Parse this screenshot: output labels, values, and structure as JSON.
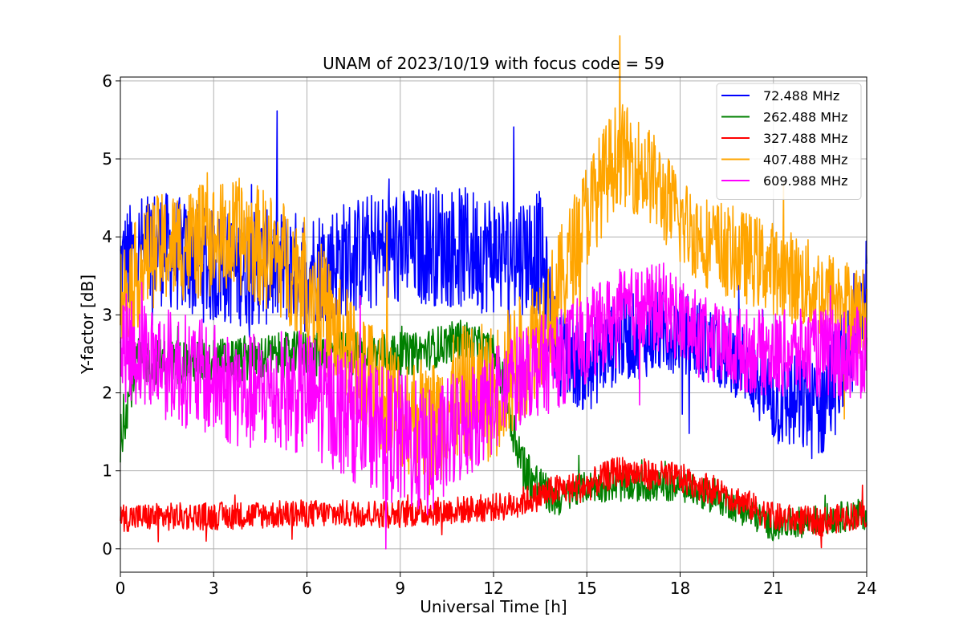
{
  "chart_data": {
    "type": "line",
    "title": "UNAM of 2023/10/19 with focus code = 59",
    "xlabel": "Universal Time [h]",
    "ylabel": "Y-factor [dB]",
    "xlim": [
      0,
      24
    ],
    "ylim": [
      -0.3,
      6.05
    ],
    "xticks": [
      0,
      3,
      6,
      9,
      12,
      15,
      18,
      21,
      24
    ],
    "yticks": [
      0,
      1,
      2,
      3,
      4,
      5,
      6
    ],
    "grid": true,
    "legend_position": "top-right",
    "series": [
      {
        "name": "72.488 MHz",
        "color": "#0000ff",
        "profile": [
          [
            0,
            3.6
          ],
          [
            1,
            3.9
          ],
          [
            3,
            3.6
          ],
          [
            6,
            3.6
          ],
          [
            8,
            3.8
          ],
          [
            10,
            3.9
          ],
          [
            12,
            3.8
          ],
          [
            13.5,
            3.8
          ],
          [
            14,
            2.6
          ],
          [
            15,
            2.3
          ],
          [
            16,
            2.7
          ],
          [
            18,
            2.8
          ],
          [
            19,
            2.6
          ],
          [
            20,
            2.4
          ],
          [
            21,
            1.9
          ],
          [
            22.5,
            1.8
          ],
          [
            23.5,
            2.6
          ],
          [
            24,
            3.5
          ]
        ],
        "amplitude": [
          [
            0,
            0.75
          ],
          [
            6,
            0.75
          ],
          [
            12,
            0.8
          ],
          [
            13.5,
            0.8
          ],
          [
            14,
            0.6
          ],
          [
            20,
            0.5
          ],
          [
            21,
            0.6
          ],
          [
            24,
            0.8
          ]
        ]
      },
      {
        "name": "262.488 MHz",
        "color": "#008000",
        "profile": [
          [
            0,
            1.4
          ],
          [
            0.5,
            2.4
          ],
          [
            3,
            2.4
          ],
          [
            6,
            2.5
          ],
          [
            8,
            2.5
          ],
          [
            9.5,
            2.5
          ],
          [
            11,
            2.7
          ],
          [
            12,
            2.5
          ],
          [
            13,
            1.0
          ],
          [
            14,
            0.6
          ],
          [
            15,
            0.8
          ],
          [
            16,
            0.8
          ],
          [
            18,
            0.8
          ],
          [
            19.5,
            0.6
          ],
          [
            21,
            0.3
          ],
          [
            24,
            0.45
          ]
        ],
        "amplitude": [
          [
            0,
            0.3
          ],
          [
            6,
            0.3
          ],
          [
            12,
            0.25
          ],
          [
            13,
            0.35
          ],
          [
            14,
            0.2
          ],
          [
            24,
            0.2
          ]
        ]
      },
      {
        "name": "327.488 MHz",
        "color": "#ff0000",
        "profile": [
          [
            0,
            0.4
          ],
          [
            3,
            0.42
          ],
          [
            6,
            0.45
          ],
          [
            9,
            0.45
          ],
          [
            11,
            0.5
          ],
          [
            12.5,
            0.55
          ],
          [
            14,
            0.75
          ],
          [
            15,
            0.8
          ],
          [
            16,
            1.0
          ],
          [
            18,
            0.9
          ],
          [
            19.5,
            0.7
          ],
          [
            21,
            0.4
          ],
          [
            22.5,
            0.35
          ],
          [
            24,
            0.45
          ]
        ],
        "amplitude": [
          [
            0,
            0.18
          ],
          [
            12,
            0.18
          ],
          [
            14,
            0.2
          ],
          [
            18,
            0.2
          ],
          [
            24,
            0.18
          ]
        ]
      },
      {
        "name": "407.488 MHz",
        "color": "#ffa500",
        "profile": [
          [
            0,
            3.2
          ],
          [
            1,
            3.8
          ],
          [
            2,
            3.9
          ],
          [
            4,
            4.0
          ],
          [
            6,
            3.5
          ],
          [
            7,
            2.7
          ],
          [
            8,
            2.2
          ],
          [
            9,
            1.8
          ],
          [
            10,
            1.6
          ],
          [
            11,
            2.0
          ],
          [
            12,
            2.0
          ],
          [
            13,
            2.5
          ],
          [
            14,
            3.2
          ],
          [
            15,
            4.3
          ],
          [
            16,
            5.1
          ],
          [
            17,
            4.8
          ],
          [
            18,
            4.2
          ],
          [
            19,
            3.9
          ],
          [
            21,
            3.6
          ],
          [
            23,
            3.2
          ],
          [
            24,
            3.0
          ]
        ],
        "amplitude": [
          [
            0,
            0.7
          ],
          [
            6,
            0.8
          ],
          [
            9,
            0.8
          ],
          [
            12,
            0.9
          ],
          [
            15,
            0.7
          ],
          [
            18,
            0.6
          ],
          [
            24,
            0.6
          ]
        ]
      },
      {
        "name": "609.988 MHz",
        "color": "#ff00ff",
        "profile": [
          [
            0,
            2.6
          ],
          [
            2,
            2.3
          ],
          [
            4,
            2.0
          ],
          [
            6,
            2.0
          ],
          [
            8,
            1.6
          ],
          [
            10,
            1.2
          ],
          [
            11,
            1.6
          ],
          [
            12,
            1.9
          ],
          [
            13,
            2.3
          ],
          [
            14,
            2.4
          ],
          [
            15,
            2.7
          ],
          [
            16,
            3.0
          ],
          [
            17.5,
            3.1
          ],
          [
            19,
            2.6
          ],
          [
            21,
            2.5
          ],
          [
            24,
            2.5
          ]
        ],
        "amplitude": [
          [
            0,
            0.7
          ],
          [
            6,
            0.8
          ],
          [
            9,
            0.9
          ],
          [
            12,
            0.7
          ],
          [
            15,
            0.6
          ],
          [
            20,
            0.55
          ],
          [
            24,
            0.6
          ]
        ]
      }
    ]
  }
}
